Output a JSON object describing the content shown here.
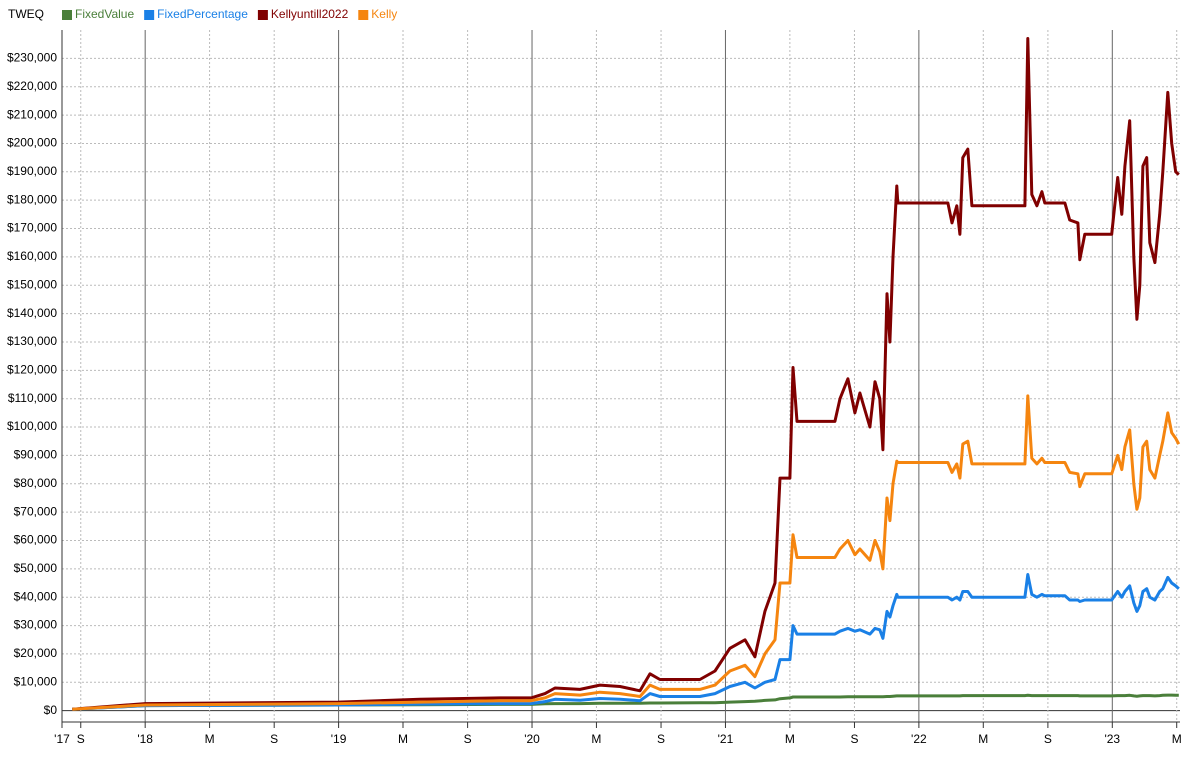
{
  "chart_data": {
    "type": "line",
    "title": "TWEQ",
    "x": [
      2017.623,
      2018.0,
      2019.0,
      2019.421,
      2019.835,
      2019.995,
      2020.067,
      2020.119,
      2020.248,
      2020.351,
      2020.455,
      2020.558,
      2020.61,
      2020.661,
      2020.868,
      2020.946,
      2021.023,
      2021.101,
      2021.152,
      2021.204,
      2021.256,
      2021.282,
      2021.333,
      2021.349,
      2021.37,
      2021.566,
      2021.592,
      2021.633,
      2021.669,
      2021.695,
      2021.747,
      2021.773,
      2021.798,
      2021.814,
      2021.835,
      2021.85,
      2021.866,
      2021.886,
      2021.891,
      2022.15,
      2022.171,
      2022.196,
      2022.212,
      2022.227,
      2022.253,
      2022.274,
      2022.548,
      2022.563,
      2022.584,
      2022.61,
      2022.636,
      2022.651,
      2022.755,
      2022.78,
      2022.822,
      2022.832,
      2022.858,
      2022.997,
      2023.028,
      2023.049,
      2023.065,
      2023.09,
      2023.111,
      2023.127,
      2023.142,
      2023.158,
      2023.178,
      2023.194,
      2023.22,
      2023.245,
      2023.261,
      2023.287,
      2023.307,
      2023.328,
      2023.344
    ],
    "series": [
      {
        "name": "FixedValue",
        "color": "#4a7f3a",
        "values": [
          500,
          1800,
          2000,
          2100,
          2200,
          2200,
          2400,
          2500,
          2500,
          2600,
          2600,
          2600,
          2700,
          2700,
          2800,
          2800,
          3000,
          3200,
          3300,
          3600,
          3800,
          4200,
          4500,
          4800,
          4800,
          4800,
          4800,
          4900,
          4900,
          4900,
          4900,
          4900,
          4900,
          4900,
          5000,
          5000,
          5100,
          5200,
          5200,
          5200,
          5200,
          5200,
          5200,
          5300,
          5300,
          5300,
          5300,
          5400,
          5300,
          5300,
          5300,
          5300,
          5300,
          5300,
          5300,
          5200,
          5200,
          5200,
          5300,
          5300,
          5300,
          5400,
          5200,
          5100,
          5200,
          5300,
          5300,
          5300,
          5200,
          5300,
          5400,
          5500,
          5500,
          5400,
          5400
        ]
      },
      {
        "name": "FixedPercentage",
        "color": "#1a80e6",
        "values": [
          500,
          1800,
          2000,
          2300,
          2500,
          2500,
          3200,
          4000,
          3700,
          4300,
          4000,
          3500,
          6000,
          5000,
          5000,
          6000,
          8500,
          10000,
          8000,
          10000,
          11000,
          18000,
          18000,
          30000,
          27000,
          27000,
          28000,
          29000,
          28000,
          28500,
          27000,
          29000,
          28500,
          25500,
          35000,
          33000,
          37000,
          41000,
          40000,
          40000,
          39000,
          40000,
          39000,
          42000,
          42000,
          40000,
          40000,
          48000,
          41000,
          40000,
          41000,
          40500,
          40500,
          39000,
          39000,
          38500,
          39000,
          39000,
          42000,
          40000,
          42000,
          44000,
          38000,
          35000,
          37000,
          42000,
          43000,
          40000,
          39000,
          42000,
          43000,
          47000,
          45000,
          44000,
          43000
        ]
      },
      {
        "name": "Kellyuntill2022",
        "color": "#800000",
        "values": [
          500,
          2500,
          3000,
          4000,
          4500,
          4500,
          6000,
          8000,
          7500,
          9000,
          8500,
          7000,
          13000,
          11000,
          11000,
          14000,
          22000,
          25000,
          19000,
          35000,
          45000,
          82000,
          82000,
          121000,
          102000,
          102000,
          110000,
          117000,
          105000,
          112000,
          100000,
          116000,
          110000,
          92000,
          147000,
          130000,
          160000,
          185000,
          179000,
          179000,
          172000,
          178000,
          168000,
          195000,
          198000,
          178000,
          178000,
          237000,
          182000,
          178000,
          183000,
          179000,
          179000,
          173000,
          172000,
          159000,
          168000,
          168000,
          188000,
          175000,
          192000,
          208000,
          160000,
          138000,
          150000,
          192000,
          195000,
          165000,
          158000,
          175000,
          190000,
          218000,
          200000,
          190000,
          189000
        ]
      },
      {
        "name": "Kelly",
        "color": "#f5850f",
        "values": [
          500,
          2000,
          2500,
          3000,
          3500,
          3500,
          4500,
          6000,
          5500,
          6500,
          6000,
          5000,
          9000,
          7500,
          7500,
          9000,
          14000,
          16000,
          12000,
          20000,
          25000,
          45000,
          45000,
          62000,
          54000,
          54000,
          57000,
          60000,
          55000,
          57000,
          53000,
          60000,
          56000,
          50000,
          75000,
          67000,
          80000,
          88000,
          87500,
          87500,
          84000,
          87000,
          82000,
          94000,
          95000,
          87000,
          87000,
          111000,
          89000,
          87000,
          89000,
          87500,
          87500,
          84000,
          83500,
          79000,
          83500,
          83500,
          90000,
          85000,
          93000,
          99000,
          80000,
          71000,
          75000,
          93000,
          95000,
          85000,
          82000,
          90000,
          95000,
          105000,
          98000,
          96000,
          94000
        ]
      }
    ],
    "xlim": [
      2017.57,
      2023.35
    ],
    "xticks": [
      {
        "value": 2017.57,
        "label": "'17"
      },
      {
        "value": 2017.667,
        "label": "S"
      },
      {
        "value": 2018,
        "label": "'18"
      },
      {
        "value": 2018.333,
        "label": "M"
      },
      {
        "value": 2018.667,
        "label": "S"
      },
      {
        "value": 2019,
        "label": "'19"
      },
      {
        "value": 2019.333,
        "label": "M"
      },
      {
        "value": 2019.667,
        "label": "S"
      },
      {
        "value": 2020,
        "label": "'20"
      },
      {
        "value": 2020.333,
        "label": "M"
      },
      {
        "value": 2020.667,
        "label": "S"
      },
      {
        "value": 2021,
        "label": "'21"
      },
      {
        "value": 2021.333,
        "label": "M"
      },
      {
        "value": 2021.667,
        "label": "S"
      },
      {
        "value": 2022,
        "label": "'22"
      },
      {
        "value": 2022.333,
        "label": "M"
      },
      {
        "value": 2022.667,
        "label": "S"
      },
      {
        "value": 2023,
        "label": "'23"
      },
      {
        "value": 2023.333,
        "label": "M"
      }
    ],
    "ylim": [
      -4000,
      240000
    ],
    "yticks": [
      {
        "value": 0,
        "label": "$0"
      },
      {
        "value": 10000,
        "label": "$10,000"
      },
      {
        "value": 20000,
        "label": "$20,000"
      },
      {
        "value": 30000,
        "label": "$30,000"
      },
      {
        "value": 40000,
        "label": "$40,000"
      },
      {
        "value": 50000,
        "label": "$50,000"
      },
      {
        "value": 60000,
        "label": "$60,000"
      },
      {
        "value": 70000,
        "label": "$70,000"
      },
      {
        "value": 80000,
        "label": "$80,000"
      },
      {
        "value": 90000,
        "label": "$90,000"
      },
      {
        "value": 100000,
        "label": "$100,000"
      },
      {
        "value": 110000,
        "label": "$110,000"
      },
      {
        "value": 120000,
        "label": "$120,000"
      },
      {
        "value": 130000,
        "label": "$130,000"
      },
      {
        "value": 140000,
        "label": "$140,000"
      },
      {
        "value": 150000,
        "label": "$150,000"
      },
      {
        "value": 160000,
        "label": "$160,000"
      },
      {
        "value": 170000,
        "label": "$170,000"
      },
      {
        "value": 180000,
        "label": "$180,000"
      },
      {
        "value": 190000,
        "label": "$190,000"
      },
      {
        "value": 200000,
        "label": "$200,000"
      },
      {
        "value": 210000,
        "label": "$210,000"
      },
      {
        "value": 220000,
        "label": "$220,000"
      },
      {
        "value": 230000,
        "label": "$230,000"
      }
    ],
    "grid": true
  }
}
